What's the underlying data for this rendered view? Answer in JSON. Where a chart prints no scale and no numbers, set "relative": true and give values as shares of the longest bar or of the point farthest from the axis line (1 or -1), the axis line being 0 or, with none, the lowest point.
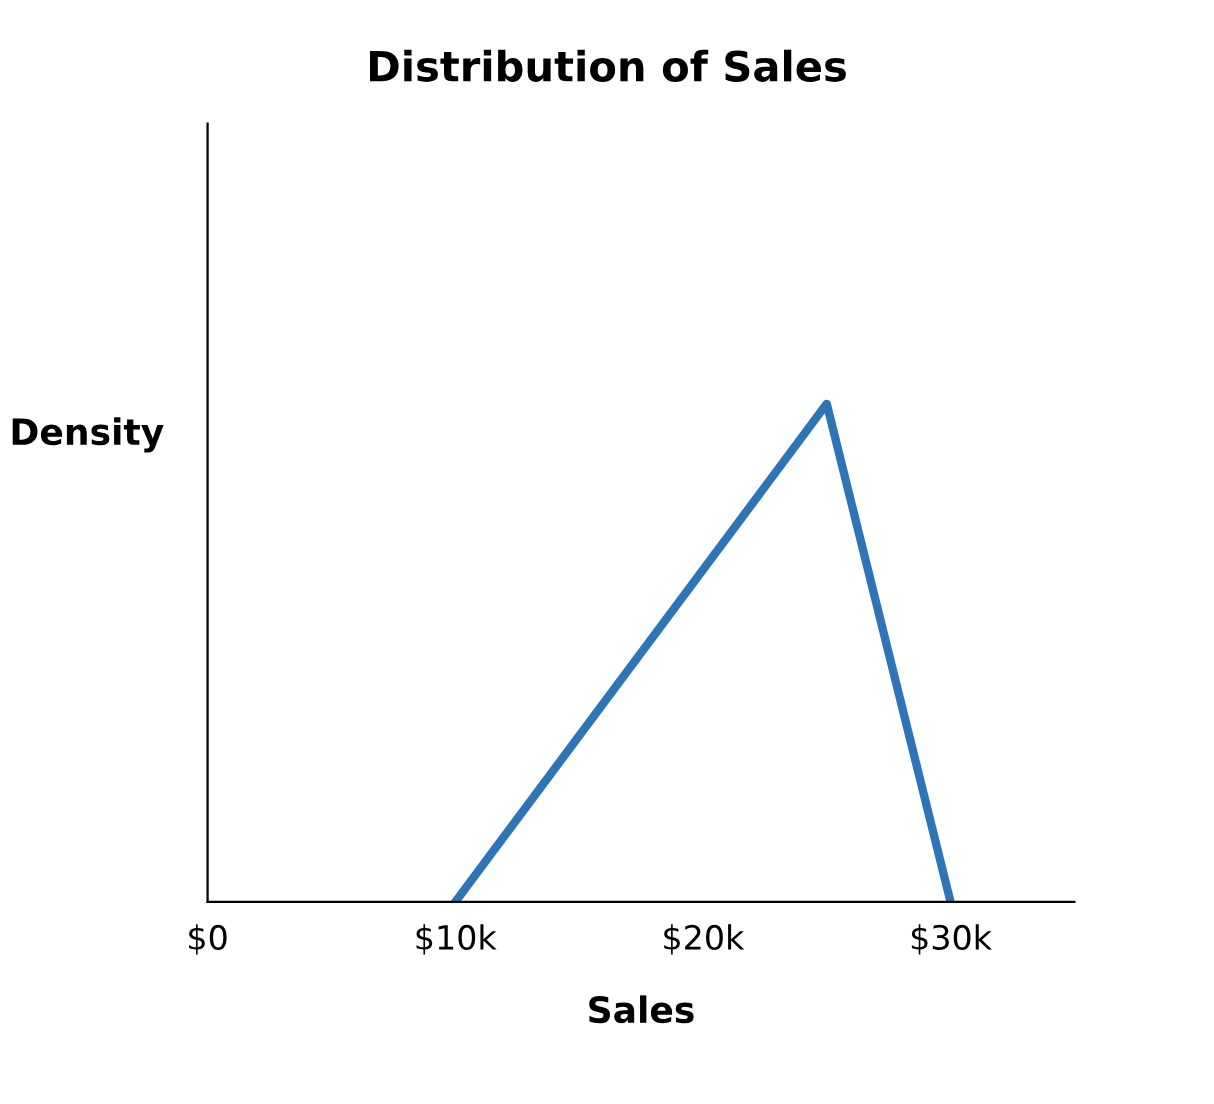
{
  "chart_data": {
    "type": "line",
    "title": "Distribution of Sales",
    "xlabel": "Sales",
    "ylabel": "Density",
    "relative": true,
    "series": [
      {
        "x": [
          10,
          25,
          30
        ],
        "values": [
          0,
          1,
          0
        ],
        "color": "#2e75b6"
      }
    ],
    "xlim": [
      0,
      35
    ],
    "xticks": [
      {
        "value": 0,
        "label": "$0"
      },
      {
        "value": 10,
        "label": "$10k"
      },
      {
        "value": 20,
        "label": "$20k"
      },
      {
        "value": 30,
        "label": "$30k"
      }
    ],
    "marker": "none",
    "line_style": "solid",
    "grid": false,
    "legend": false
  }
}
